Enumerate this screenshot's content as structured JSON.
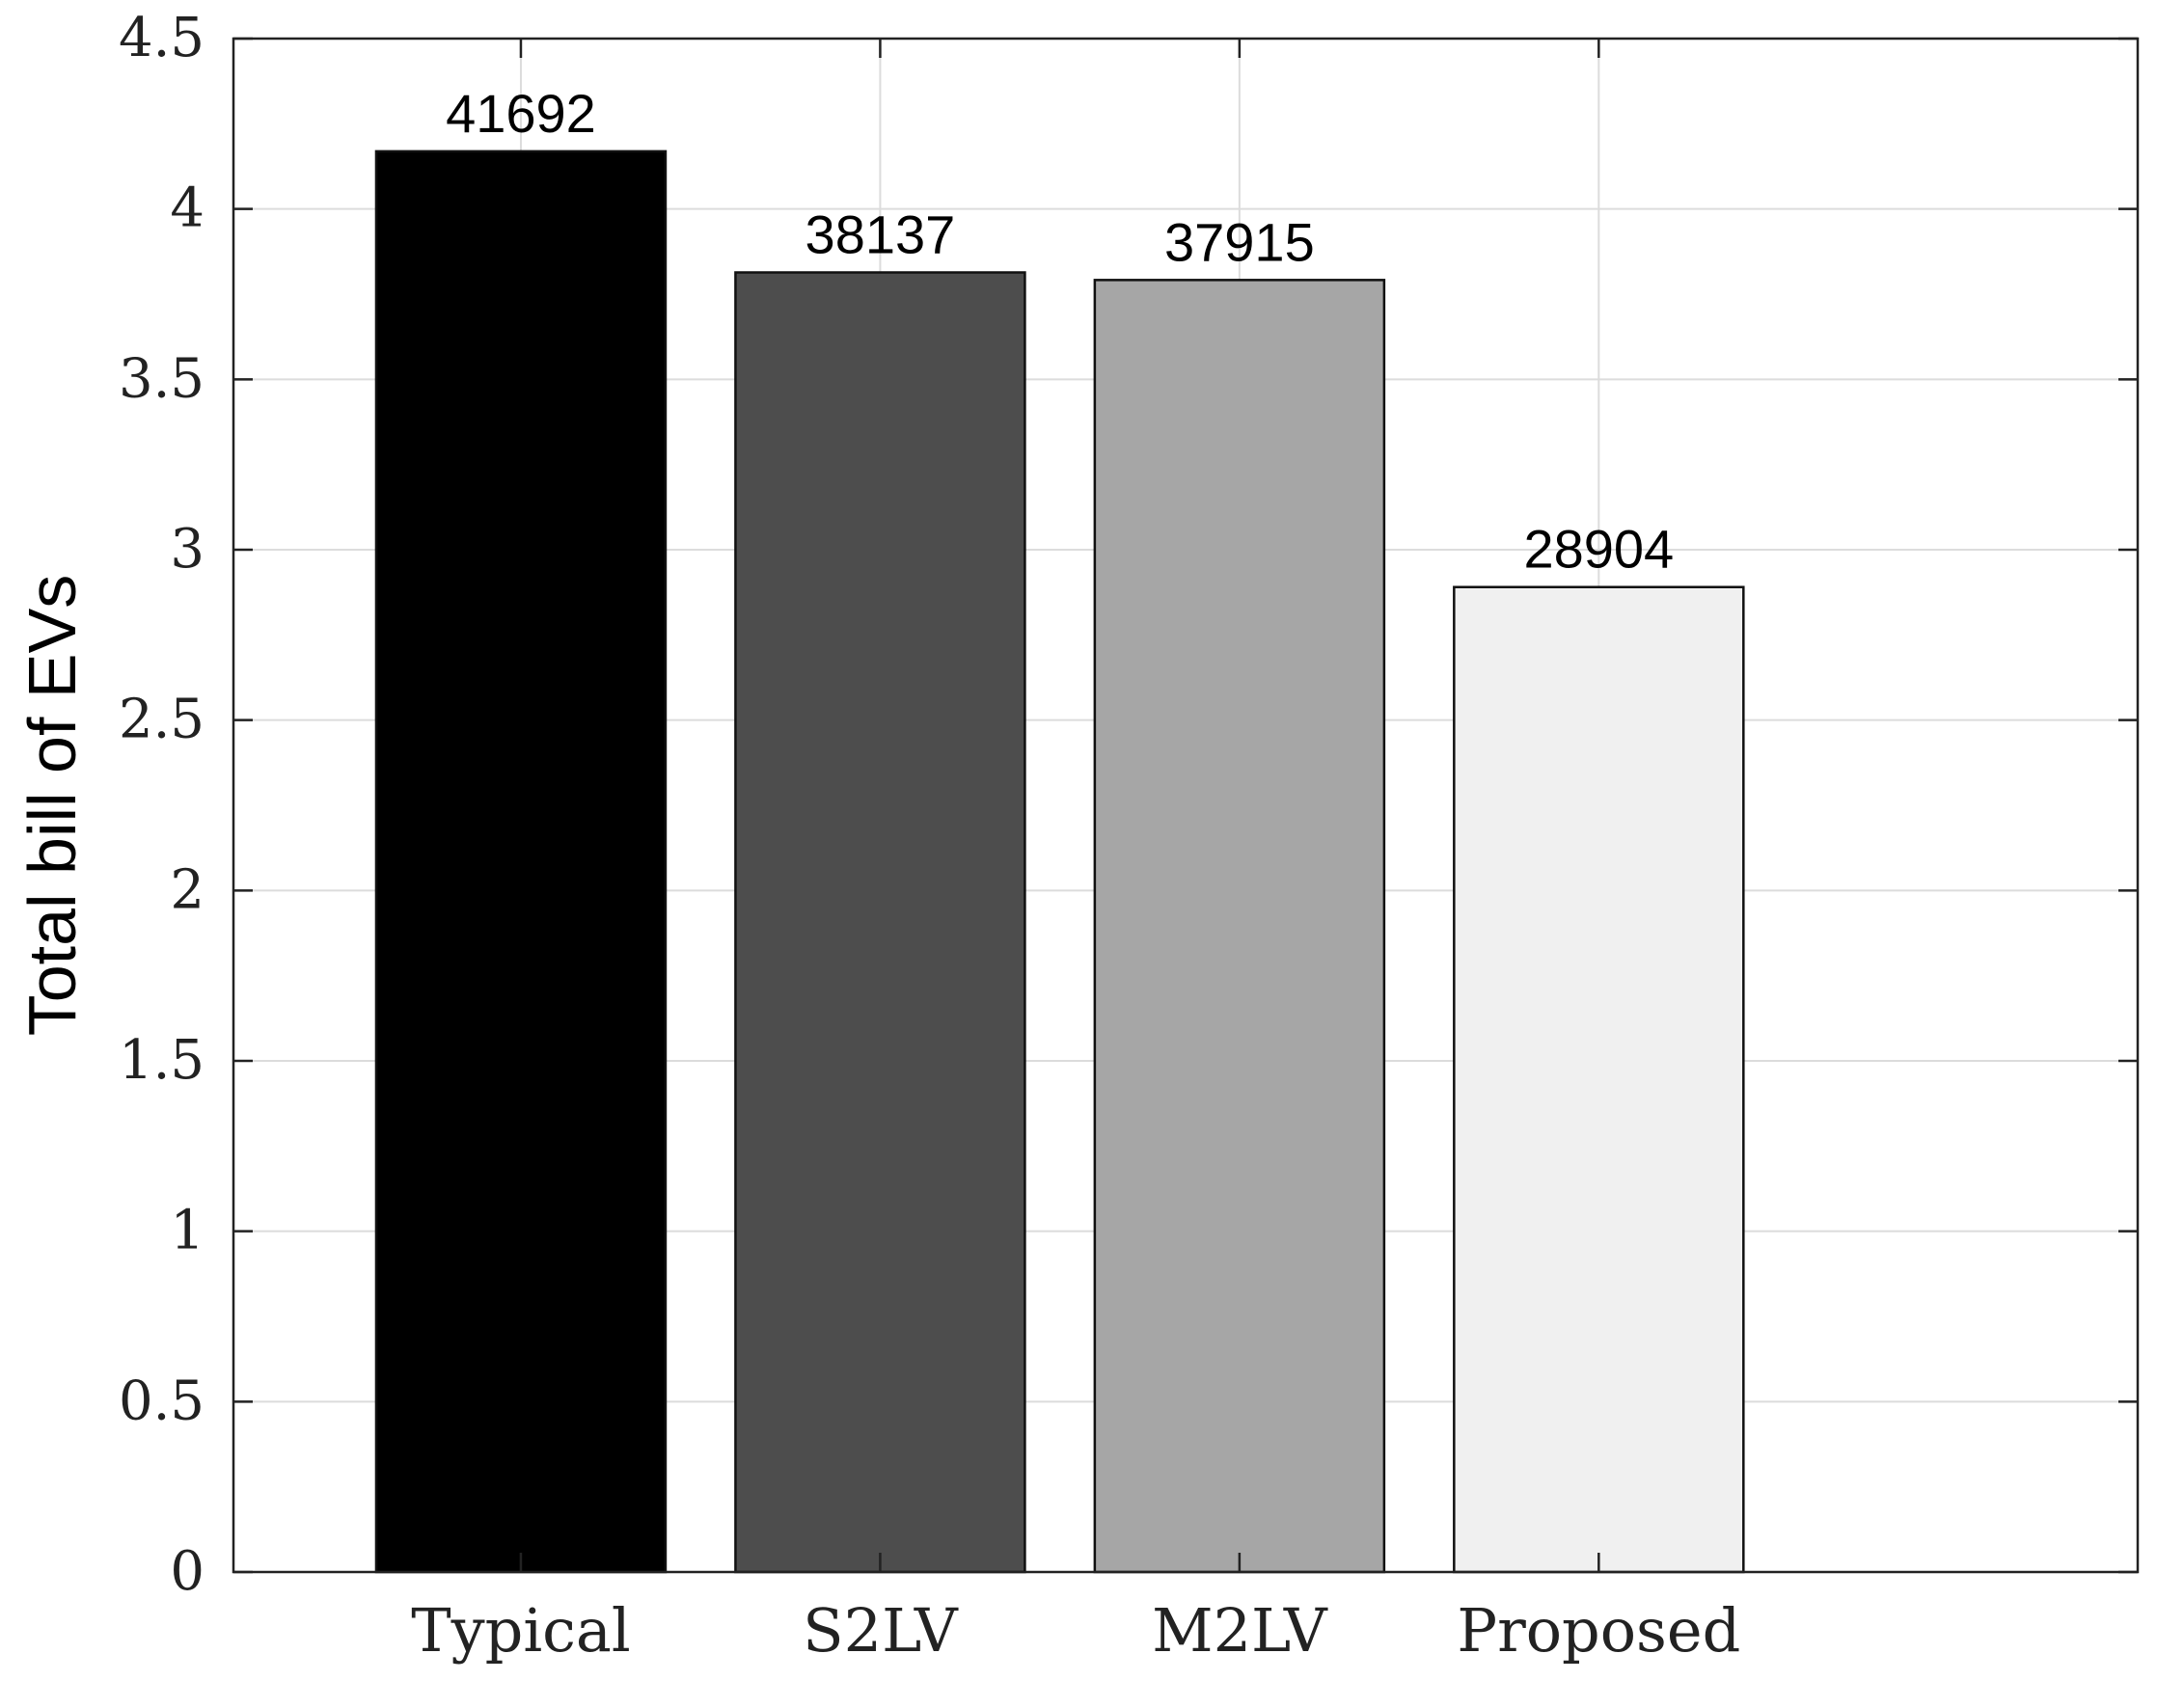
{
  "chart_data": {
    "type": "bar",
    "title": "",
    "xlabel": "",
    "ylabel": "Total bill of EVs",
    "ylim": [
      0,
      4.5
    ],
    "yticks": [
      0,
      0.5,
      1,
      1.5,
      2,
      2.5,
      3,
      3.5,
      4,
      4.5
    ],
    "ytick_labels": [
      "0",
      "0.5",
      "1",
      "1.5",
      "2",
      "2.5",
      "3",
      "3.5",
      "4",
      "4.5"
    ],
    "categories": [
      "Typical",
      "S2LV",
      "M2LV",
      "Proposed"
    ],
    "values": [
      4.1692,
      3.8137,
      3.7915,
      2.8904
    ],
    "data_labels": [
      "41692",
      "38137",
      "37915",
      "28904"
    ],
    "bar_colors": [
      "#000000",
      "#4d4d4d",
      "#a6a6a6",
      "#f0f0f0"
    ],
    "xlim": [
      0.2,
      5.5
    ],
    "x_positions": [
      1,
      2,
      3,
      4
    ],
    "grid": true,
    "legend": "none"
  }
}
